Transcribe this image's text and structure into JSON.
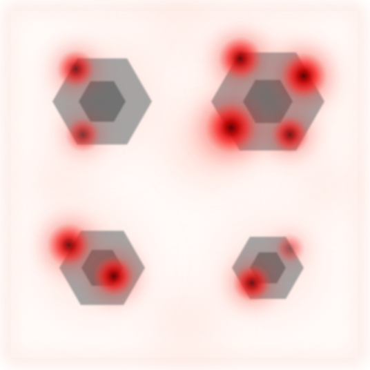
{
  "colors": {
    "background": "#ffffff",
    "heat_low": "#fff1ec",
    "heat_mid": "#ff6b5a",
    "heat_high": "#e00000",
    "heat_core": "#7a0000",
    "hex_outer": "#9a9a9a",
    "hex_inner": "#6f6f6f"
  },
  "objects": [
    {
      "kind": "hexagon-nut",
      "label": ""
    },
    {
      "kind": "hexagon-nut",
      "label": ""
    },
    {
      "kind": "hexagon-nut",
      "label": ""
    },
    {
      "kind": "hexagon-nut",
      "label": ""
    }
  ]
}
